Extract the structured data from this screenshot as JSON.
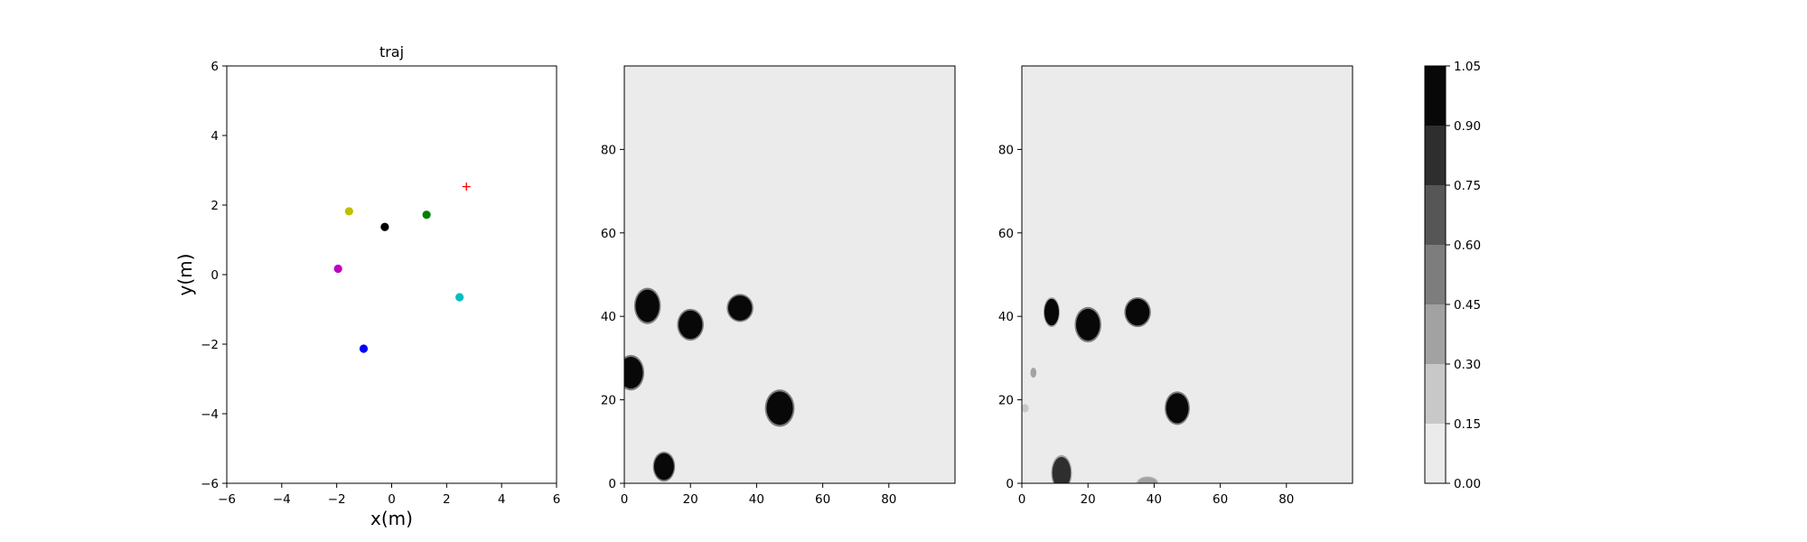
{
  "figure": {
    "background": "#ffffff",
    "panel_background": "#ebebeb"
  },
  "chart_data": [
    {
      "type": "scatter",
      "title": "traj",
      "xlabel": "x(m)",
      "ylabel": "y(m)",
      "xlim": [
        -6,
        6
      ],
      "ylim": [
        -6,
        6
      ],
      "xticks": [
        -6,
        -4,
        -2,
        0,
        2,
        4,
        6
      ],
      "yticks": [
        -6,
        -4,
        -2,
        0,
        2,
        4,
        6
      ],
      "grid": false,
      "points": [
        {
          "x": -1.55,
          "y": 1.82,
          "color": "#bfbf00",
          "marker": "circle"
        },
        {
          "x": -0.25,
          "y": 1.37,
          "color": "#000000",
          "marker": "circle"
        },
        {
          "x": 1.27,
          "y": 1.72,
          "color": "#008000",
          "marker": "circle"
        },
        {
          "x": -1.95,
          "y": 0.17,
          "color": "#bf00bf",
          "marker": "circle"
        },
        {
          "x": 2.47,
          "y": -0.65,
          "color": "#00bfbf",
          "marker": "circle"
        },
        {
          "x": -1.02,
          "y": -2.13,
          "color": "#0000ff",
          "marker": "circle"
        },
        {
          "x": 2.72,
          "y": 2.53,
          "color": "#ff0000",
          "marker": "plus"
        }
      ]
    },
    {
      "type": "heatmap",
      "title": "",
      "xlim": [
        0,
        100
      ],
      "ylim": [
        0,
        100
      ],
      "xticks": [
        0,
        20,
        40,
        60,
        80
      ],
      "yticks": [
        0,
        20,
        40,
        60,
        80
      ],
      "background_value": 0.0,
      "blobs": [
        {
          "cx": 7,
          "cy": 42.5,
          "rx": 3.6,
          "ry": 3.9,
          "value": 1.0
        },
        {
          "cx": 20,
          "cy": 38,
          "rx": 3.6,
          "ry": 3.4,
          "value": 1.0
        },
        {
          "cx": 35,
          "cy": 42,
          "rx": 3.6,
          "ry": 3.0,
          "value": 1.0
        },
        {
          "cx": 2,
          "cy": 26.5,
          "rx": 3.6,
          "ry": 3.8,
          "value": 1.0
        },
        {
          "cx": 47,
          "cy": 18,
          "rx": 4.0,
          "ry": 4.0,
          "value": 1.0
        },
        {
          "cx": 12,
          "cy": 4,
          "rx": 3.0,
          "ry": 3.2,
          "value": 1.0
        }
      ]
    },
    {
      "type": "heatmap",
      "title": "",
      "xlim": [
        0,
        100
      ],
      "ylim": [
        0,
        100
      ],
      "xticks": [
        0,
        20,
        40,
        60,
        80
      ],
      "yticks": [
        0,
        20,
        40,
        60,
        80
      ],
      "background_value": 0.0,
      "blobs": [
        {
          "cx": 9,
          "cy": 41,
          "rx": 2.2,
          "ry": 3.2,
          "value": 0.9
        },
        {
          "cx": 20,
          "cy": 38,
          "rx": 3.6,
          "ry": 3.8,
          "value": 1.0
        },
        {
          "cx": 35,
          "cy": 41,
          "rx": 3.6,
          "ry": 3.2,
          "value": 1.0
        },
        {
          "cx": 47,
          "cy": 18,
          "rx": 3.4,
          "ry": 3.6,
          "value": 1.0
        },
        {
          "cx": 12,
          "cy": 2.5,
          "rx": 2.8,
          "ry": 3.8,
          "value": 0.85
        },
        {
          "cx": 3.5,
          "cy": 26.5,
          "rx": 0.9,
          "ry": 1.2,
          "value": 0.3
        },
        {
          "cx": 1,
          "cy": 18,
          "rx": 1.1,
          "ry": 1.0,
          "value": 0.25
        },
        {
          "cx": 38,
          "cy": 0,
          "rx": 3.0,
          "ry": 1.5,
          "value": 0.35
        }
      ]
    },
    {
      "type": "colorbar",
      "levels": [
        0.0,
        0.15,
        0.3,
        0.45,
        0.6,
        0.75,
        0.9,
        1.05
      ],
      "tick_labels": [
        "0.00",
        "0.15",
        "0.30",
        "0.45",
        "0.60",
        "0.75",
        "0.90",
        "1.05"
      ],
      "colors": [
        "#ebebeb",
        "#c8c8c8",
        "#a2a2a2",
        "#7d7d7d",
        "#565656",
        "#2e2e2e",
        "#080808"
      ]
    }
  ]
}
